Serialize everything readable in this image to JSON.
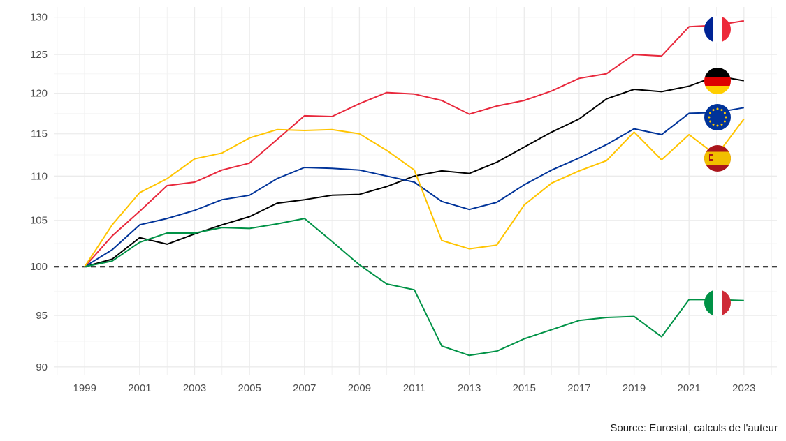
{
  "chart_data": {
    "type": "line",
    "caption": "Source: Eurostat, calculs de l'auteur",
    "x": [
      1999,
      2000,
      2001,
      2002,
      2003,
      2004,
      2005,
      2006,
      2007,
      2008,
      2009,
      2010,
      2011,
      2012,
      2013,
      2014,
      2015,
      2016,
      2017,
      2018,
      2019,
      2020,
      2021,
      2022,
      2023
    ],
    "x_ticks": [
      1999,
      2001,
      2003,
      2005,
      2007,
      2009,
      2011,
      2013,
      2015,
      2017,
      2019,
      2021,
      2023
    ],
    "y_ticks": [
      90,
      95,
      100,
      105,
      110,
      115,
      120,
      125,
      130
    ],
    "xlim": [
      1997.9,
      2024.2
    ],
    "ylim": [
      89.2,
      131.4
    ],
    "y_scale": "log",
    "grid": true,
    "reference_line": {
      "y": 100,
      "style": "dashed",
      "color": "#000000"
    },
    "series": [
      {
        "flag": "france-flag",
        "color": "#E8283C",
        "values": [
          100,
          103.3,
          106.0,
          108.9,
          109.3,
          110.7,
          111.5,
          114.3,
          117.2,
          117.1,
          118.7,
          120.1,
          119.9,
          119.1,
          117.4,
          118.4,
          119.1,
          120.3,
          121.9,
          122.5,
          125.0,
          124.8,
          128.7,
          128.9,
          129.5
        ]
      },
      {
        "flag": "germany-flag",
        "color": "#000000",
        "values": [
          100,
          100.8,
          103.1,
          102.4,
          103.5,
          104.5,
          105.4,
          106.9,
          107.3,
          107.8,
          107.9,
          108.8,
          110.0,
          110.6,
          110.3,
          111.6,
          113.4,
          115.2,
          116.8,
          119.3,
          120.5,
          120.2,
          120.9,
          122.2,
          121.6
        ]
      },
      {
        "flag": "eu-flag",
        "color": "#003399",
        "values": [
          100,
          101.8,
          104.5,
          105.2,
          106.1,
          107.3,
          107.8,
          109.7,
          111.0,
          110.9,
          110.7,
          110.0,
          109.3,
          107.1,
          106.2,
          107.0,
          109.0,
          110.7,
          112.1,
          113.7,
          115.6,
          114.9,
          117.5,
          117.6,
          118.2
        ]
      },
      {
        "flag": "spain-flag",
        "color": "#FFC400",
        "values": [
          100,
          104.5,
          108.1,
          109.7,
          112.0,
          112.7,
          114.5,
          115.5,
          115.4,
          115.5,
          115.0,
          113.0,
          110.7,
          102.8,
          101.9,
          102.3,
          106.7,
          109.2,
          110.6,
          111.8,
          115.2,
          111.9,
          114.9,
          112.4,
          116.8
        ]
      },
      {
        "flag": "italy-flag",
        "color": "#009246",
        "values": [
          100,
          100.6,
          102.6,
          103.6,
          103.6,
          104.2,
          104.1,
          104.6,
          105.2,
          102.7,
          100.2,
          98.2,
          97.6,
          92.0,
          91.1,
          91.5,
          92.7,
          93.6,
          94.5,
          94.8,
          94.9,
          92.9,
          96.6,
          96.6,
          96.5
        ]
      }
    ]
  }
}
